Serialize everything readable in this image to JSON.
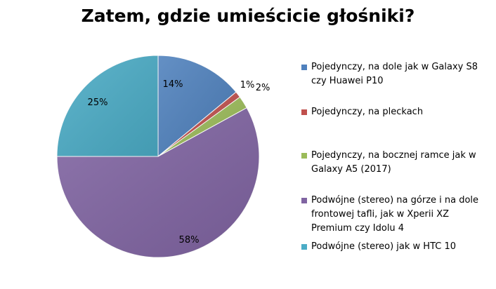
{
  "chart_data": {
    "type": "pie",
    "title": "Zatem, gdzie umieścicie głośniki?",
    "slices": [
      {
        "label": "Pojedynczy, na dole jak w Galaxy S8 czy Huawei P10",
        "value": 14,
        "display": "14%",
        "color": "#4f81bd"
      },
      {
        "label": "Pojedynczy, na pleckach",
        "value": 1,
        "display": "1%",
        "color": "#c0504d"
      },
      {
        "label": "Pojedynczy, na bocznej ramce jak w Galaxy A5 (2017)",
        "value": 2,
        "display": "2%",
        "color": "#9bbb59"
      },
      {
        "label": "Podwójne (stereo) na górze i na dole frontowej tafli, jak w Xperii XZ Premium czy Idolu 4",
        "value": 58,
        "display": "58%",
        "color": "#8064a2"
      },
      {
        "label": "Podwójne (stereo) jak w HTC 10",
        "value": 25,
        "display": "25%",
        "color": "#4bacc6"
      }
    ],
    "legend_position": "right"
  }
}
